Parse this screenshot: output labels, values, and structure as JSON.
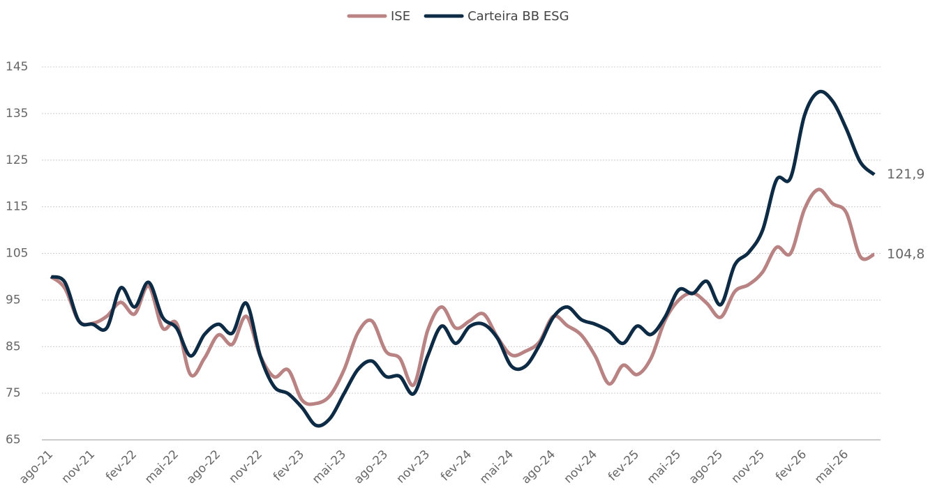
{
  "chart_data": {
    "type": "line",
    "categories": [
      "ago-21",
      null,
      null,
      "nov-21",
      null,
      null,
      "fev-22",
      null,
      null,
      "mai-22",
      null,
      null,
      "ago-22",
      null,
      null,
      "nov-22",
      null,
      null,
      "fev-23",
      null,
      null,
      "mai-23",
      null,
      null,
      "ago-23",
      null,
      null,
      "nov-23",
      null,
      null,
      "fev-24",
      null,
      null,
      "mai-24",
      null,
      null,
      "ago-24",
      null,
      null,
      "nov-24",
      null,
      null,
      "fev-25",
      null,
      null,
      "mai-25",
      null,
      null,
      "ago-25",
      null,
      null,
      "nov-25",
      null,
      null,
      "fev-26",
      null,
      null,
      "mai-26",
      null,
      null
    ],
    "series": [
      {
        "name": "ISE",
        "color": "#b98383",
        "values": [
          100,
          97.5,
          90.5,
          90,
          91.5,
          94.5,
          92,
          98,
          89,
          90,
          79,
          82.5,
          87.5,
          85.5,
          91.5,
          83,
          78.5,
          80,
          73.5,
          72.8,
          74.5,
          80,
          88,
          90.5,
          84,
          82.5,
          76.8,
          88.5,
          93.5,
          89,
          90.5,
          92,
          87,
          83.2,
          84,
          86,
          91.5,
          89.5,
          87.5,
          83,
          77,
          81,
          79,
          82.5,
          90.6,
          95,
          96.5,
          94.3,
          91.3,
          96.8,
          98.3,
          101,
          106.3,
          105,
          114.5,
          118.7,
          115.7,
          113.7,
          104.3,
          104.8
        ],
        "value_labels": [
          null,
          null,
          null,
          null,
          null,
          null,
          null,
          null,
          null,
          null,
          null,
          null,
          null,
          null,
          null,
          null,
          null,
          null,
          null,
          null,
          null,
          null,
          null,
          null,
          null,
          null,
          null,
          null,
          null,
          null,
          null,
          null,
          null,
          null,
          null,
          null,
          null,
          null,
          null,
          null,
          null,
          null,
          null,
          null,
          null,
          null,
          null,
          null,
          null,
          null,
          null,
          null,
          null,
          null,
          null,
          null,
          null,
          null,
          null,
          "104,8"
        ]
      },
      {
        "name": "Carteira BB ESG",
        "color": "#0d2b45",
        "values": [
          100,
          98.8,
          90.5,
          89.8,
          89,
          97.6,
          93.5,
          98.8,
          91.3,
          89,
          83,
          87.6,
          89.8,
          87.9,
          94.3,
          83,
          76.4,
          74.9,
          71.9,
          68.1,
          69.6,
          74.9,
          80.1,
          81.9,
          78.6,
          78.6,
          74.9,
          83,
          89.4,
          85.7,
          89.3,
          89.8,
          86.8,
          80.8,
          80.8,
          85.3,
          91.3,
          93.5,
          90.8,
          89.8,
          88.3,
          85.7,
          89.4,
          87.6,
          91.3,
          97.2,
          96.4,
          99,
          94,
          102.5,
          105.2,
          110,
          120.8,
          121.2,
          134.6,
          139.6,
          137.7,
          131.7,
          124.6,
          121.9
        ],
        "value_labels": [
          null,
          null,
          null,
          null,
          null,
          null,
          null,
          null,
          null,
          null,
          null,
          null,
          null,
          null,
          null,
          null,
          null,
          null,
          null,
          null,
          null,
          null,
          null,
          null,
          null,
          null,
          null,
          null,
          null,
          null,
          null,
          null,
          null,
          null,
          null,
          null,
          null,
          null,
          null,
          null,
          null,
          null,
          null,
          null,
          null,
          null,
          null,
          null,
          null,
          null,
          null,
          null,
          null,
          null,
          null,
          null,
          null,
          null,
          null,
          "121,9"
        ]
      }
    ],
    "ylim": [
      65,
      145
    ],
    "yticks": [
      65,
      75,
      85,
      95,
      105,
      115,
      125,
      135,
      145
    ],
    "grid": true,
    "legend": "top"
  }
}
